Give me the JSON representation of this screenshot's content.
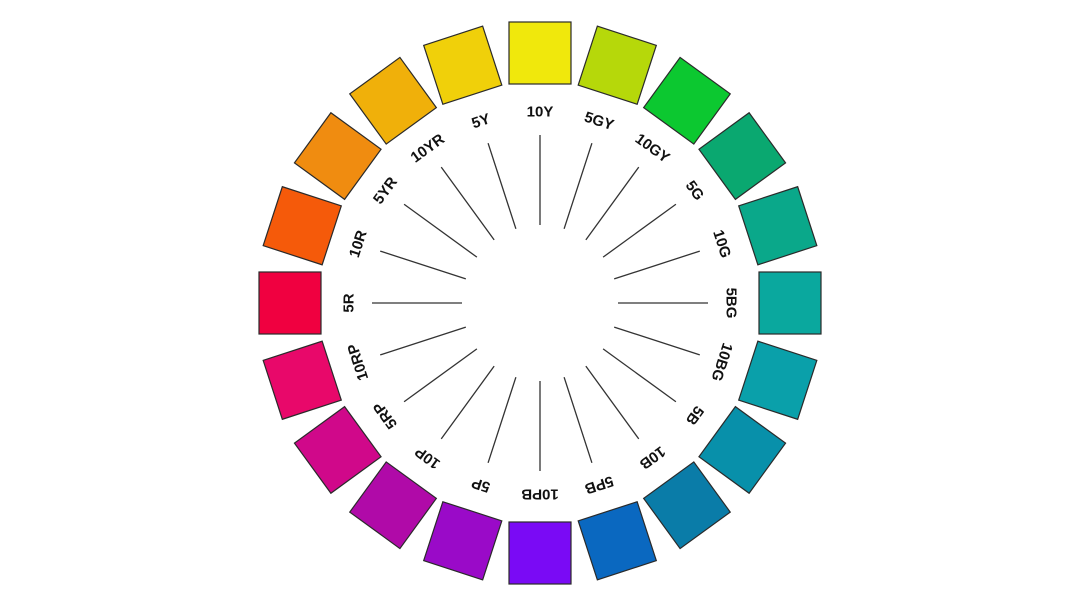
{
  "hues": [
    {
      "label": "10Y",
      "color": "#f0e80c"
    },
    {
      "label": "5GY",
      "color": "#b6d80a"
    },
    {
      "label": "10GY",
      "color": "#0cc830"
    },
    {
      "label": "5G",
      "color": "#0aa870"
    },
    {
      "label": "10G",
      "color": "#0aa88a"
    },
    {
      "label": "5BG",
      "color": "#0aa89e"
    },
    {
      "label": "10BG",
      "color": "#0aa0aa"
    },
    {
      "label": "5B",
      "color": "#0890aa"
    },
    {
      "label": "10B",
      "color": "#0a7ca8"
    },
    {
      "label": "5PB",
      "color": "#0a68c0"
    },
    {
      "label": "10PB",
      "color": "#7a0af5"
    },
    {
      "label": "5P",
      "color": "#9a0ac8"
    },
    {
      "label": "10P",
      "color": "#b00aa8"
    },
    {
      "label": "5RP",
      "color": "#d0088a"
    },
    {
      "label": "10RP",
      "color": "#e8086a"
    },
    {
      "label": "5R",
      "color": "#f00040"
    },
    {
      "label": "10R",
      "color": "#f55a0a"
    },
    {
      "label": "5YR",
      "color": "#f08c10"
    },
    {
      "label": "10YR",
      "color": "#f0b00a"
    },
    {
      "label": "5Y",
      "color": "#f0d00a"
    }
  ]
}
